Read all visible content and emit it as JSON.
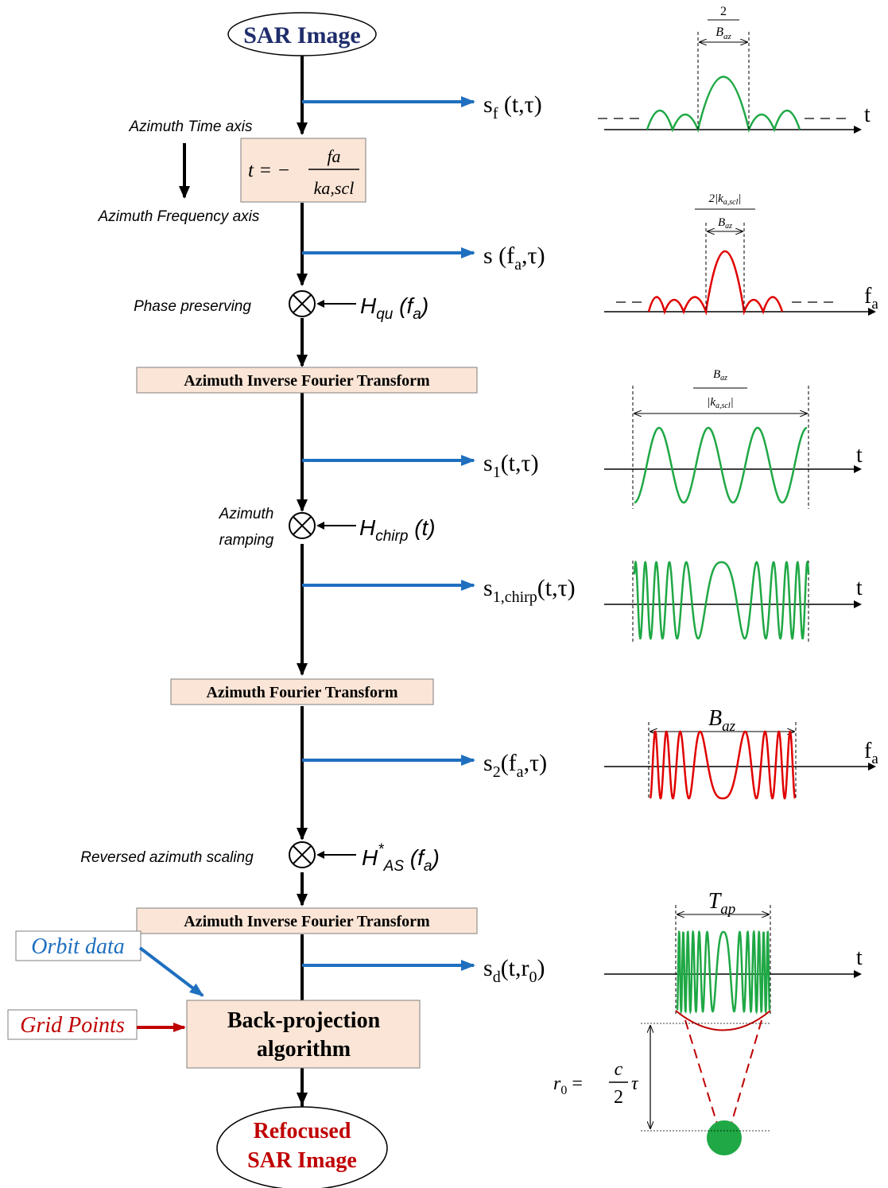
{
  "colors": {
    "box_fill": "#fbe5d6",
    "arrow_blue": "#1f6fbf",
    "green": "#1fa845",
    "red": "#e00000",
    "navy": "#1f2d6b",
    "dark_red": "#c00000"
  },
  "nodes": {
    "start": "SAR Image",
    "end_line1": "Refocused",
    "end_line2": "SAR Image",
    "aift_1": "Azimuth Inverse Fourier Transform",
    "aft": "Azimuth Fourier Transform",
    "aift_2": "Azimuth Inverse Fourier Transform",
    "bp_line1": "Back-projection",
    "bp_line2": "algorithm",
    "orbit_data": "Orbit data",
    "grid_points": "Grid Points"
  },
  "side_labels": {
    "time_axis": "Azimuth Time axis",
    "freq_axis": "Azimuth Frequency axis",
    "phase_preserving": "Phase preserving",
    "azimuth_ramping_1": "Azimuth",
    "azimuth_ramping_2": "ramping",
    "reversed_scaling": "Reversed azimuth scaling"
  },
  "equations": {
    "mapping_lhs": "t = −",
    "mapping_num": "fa",
    "mapping_den": "ka,scl",
    "range_lhs": "r0 =",
    "range_num": "c",
    "range_den": "2",
    "range_rhs": "τ"
  },
  "filters": {
    "h_qu": "Hqu (fa)",
    "h_chirp": "Hchirp (t)",
    "h_as": "H*AS (fa)"
  },
  "signals": {
    "sf": "sf (t,τ)",
    "s": "s (fa,τ)",
    "s1": "s1(t,τ)",
    "s1_chirp": "s1,chirp(t,τ)",
    "s2": "s2(fa,τ)",
    "sd": "sd(t,r0)"
  },
  "plot_annotations": {
    "width_1_num": "2",
    "width_1_den": "Baz",
    "width_2_num": "2|ka,scl|",
    "width_2_den": "Baz",
    "width_3_num": "Baz",
    "width_3_den": "|ka,scl|",
    "width_4": "Baz",
    "width_5": "Tap",
    "axis_t": "t",
    "axis_fa": "fa"
  }
}
